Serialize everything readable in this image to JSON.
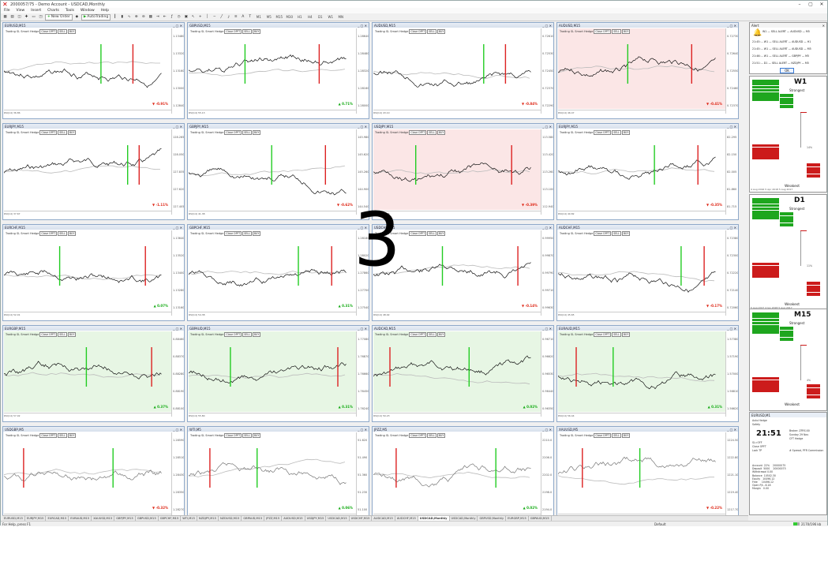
{
  "window": {
    "title": "2000057/75 - Demo Account - USDCAD,Monthly",
    "controls": [
      "–",
      "▢",
      "✕"
    ]
  },
  "menu": [
    "File",
    "View",
    "Insert",
    "Charts",
    "Tools",
    "Window",
    "Help"
  ],
  "toolbar": {
    "new_order": "New Order",
    "autotrading": "AutoTrading",
    "timeframes": [
      "M1",
      "M5",
      "M15",
      "M30",
      "H1",
      "H4",
      "D1",
      "W1",
      "MN"
    ]
  },
  "overlay_number": "3",
  "chart_windows": [
    {
      "title": "EURUSD,M15",
      "tone": "white",
      "change": "▼ -0.91%",
      "dir": "dn",
      "axis": [
        "1.13480",
        "1.13320",
        "1.13160",
        "1.13000",
        "1.12840"
      ],
      "indicator": "RSI(14) 36.86"
    },
    {
      "title": "GBPUSD,M15",
      "tone": "white",
      "change": "▲ 0.71%",
      "dir": "up",
      "axis": [
        "1.28640",
        "1.28480",
        "1.28320",
        "1.28160",
        "1.28000"
      ],
      "indicator": "RSI(14) 55.13"
    },
    {
      "title": "AUDUSD,M15",
      "tone": "white",
      "change": "▼ -0.84%",
      "dir": "dn",
      "axis": [
        "0.72610",
        "0.72530",
        "0.72450",
        "0.72370",
        "0.72290"
      ],
      "indicator": "RSI(14) 43.10"
    },
    {
      "title": "AUDUSD,M15",
      "tone": "pink",
      "change": "▼ -0.41%",
      "dir": "dn",
      "axis": [
        "0.72730",
        "0.72640",
        "0.72550",
        "0.72460",
        "0.72370"
      ],
      "indicator": "RSI(14) 46.47"
    },
    {
      "title": "EURJPY,M15",
      "tone": "white",
      "change": "▼ -1.11%",
      "dir": "dn",
      "axis": [
        "128.265",
        "128.050",
        "127.835",
        "127.620",
        "127.405"
      ],
      "indicator": "RSI(14) 37.67"
    },
    {
      "title": "GBPJPY,M15",
      "tone": "white",
      "change": "▼ -0.62%",
      "dir": "dn",
      "axis": [
        "145.980",
        "145.620",
        "145.260",
        "144.900",
        "144.540"
      ],
      "indicator": "RSI(14) 41.38"
    },
    {
      "title": "USDJPY,M15",
      "tone": "pink",
      "change": "▼ -0.39%",
      "dir": "dn",
      "axis": [
        "113.580",
        "113.420",
        "113.260",
        "113.100",
        "112.940"
      ],
      "indicator": "RSI(14) 38.26"
    },
    {
      "title": "EURJPY,M15",
      "tone": "white",
      "change": "▼ -0.35%",
      "dir": "dn",
      "axis": [
        "82.295",
        "82.150",
        "82.005",
        "81.860",
        "81.715"
      ],
      "indicator": "RSI(14) 40.82"
    },
    {
      "title": "EURCHF,M15",
      "tone": "white",
      "change": "▲ 0.07%",
      "dir": "up",
      "axis": [
        "1.13640",
        "1.13520",
        "1.13400",
        "1.13280",
        "1.13160"
      ],
      "indicator": "RSI(14) 52.01"
    },
    {
      "title": "GBPCHF,M15",
      "tone": "white",
      "change": "▲ 0.31%",
      "dir": "up",
      "axis": [
        "1.28180",
        "1.28020",
        "1.27860",
        "1.27700",
        "1.27540"
      ],
      "indicator": "RSI(14) 54.38"
    },
    {
      "title": "USDCHF,M15",
      "tone": "white",
      "change": "▼ -0.14%",
      "dir": "dn",
      "axis": [
        "0.99950",
        "0.99870",
        "0.99790",
        "0.99710",
        "0.99630"
      ],
      "indicator": "RSI(14) 48.92"
    },
    {
      "title": "AUDCHF,M15",
      "tone": "white",
      "change": "▼ -0.17%",
      "dir": "dn",
      "axis": [
        "0.72380",
        "0.72300",
        "0.72220",
        "0.72140",
        "0.72060"
      ],
      "indicator": "RSI(14) 45.65"
    },
    {
      "title": "EURGBP,M15",
      "tone": "green",
      "change": "▲ 0.37%",
      "dir": "up",
      "axis": [
        "0.88460",
        "0.88370",
        "0.88280",
        "0.88190",
        "0.88100"
      ],
      "indicator": "RSI(14) 57.02"
    },
    {
      "title": "GBPAUD,M15",
      "tone": "green",
      "change": "▲ 0.31%",
      "dir": "up",
      "axis": [
        "1.77080",
        "1.76870",
        "1.76660",
        "1.76450",
        "1.76240"
      ],
      "indicator": "RSI(14) 55.80"
    },
    {
      "title": "AUDCAD,M15",
      "tone": "green",
      "change": "▲ 0.02%",
      "dir": "up",
      "axis": [
        "0.96710",
        "0.96620",
        "0.96530",
        "0.96440",
        "0.96350"
      ],
      "indicator": "RSI(14) 50.23"
    },
    {
      "title": "EURAUD,M15",
      "tone": "green",
      "change": "▲ 0.31%",
      "dir": "up",
      "axis": [
        "1.57380",
        "1.57190",
        "1.57000",
        "1.56810",
        "1.56620"
      ],
      "indicator": "RSI(14) 56.44"
    },
    {
      "title": "USDGBP,M5",
      "tone": "white",
      "change": "▼ -0.32%",
      "dir": "dn",
      "axis": [
        "1.28590",
        "1.28510",
        "1.28430",
        "1.28350",
        "1.28270"
      ],
      "indicator": ""
    },
    {
      "title": "WTI,M5",
      "tone": "white",
      "change": "▲ 0.06%",
      "dir": "up",
      "axis": [
        "51.620",
        "51.490",
        "51.360",
        "51.230",
        "51.100"
      ],
      "indicator": ""
    },
    {
      "title": "JPZZ,M5",
      "tone": "white",
      "change": "▲ 0.02%",
      "dir": "up",
      "axis": [
        "2210.0",
        "2206.0",
        "2202.0",
        "2198.0",
        "2194.0"
      ],
      "indicator": ""
    },
    {
      "title": "XAUUSD,M5",
      "tone": "white",
      "change": "▼ -0.22%",
      "dir": "dn",
      "axis": [
        "1224.50",
        "1222.80",
        "1221.10",
        "1219.40",
        "1217.70"
      ],
      "indicator": ""
    }
  ],
  "chart_overlay": {
    "trading_label": "Trading SL",
    "hedge_label": "Smart Hedge",
    "close_btn": "Close OPFT",
    "buy": "BUY",
    "sell": "SELL",
    "trade_max_btn": "Trade Max OPFT"
  },
  "tabs": [
    "EURUSD,M15",
    "EURJPY,M15",
    "EURCAD,M15",
    "EURAUD,M15",
    "XAUUSD,M15",
    "GBPJPY,M15",
    "GBPUSD,M15",
    "GBPCHF,M15",
    "WTI,M15",
    "NZDJPY,M15",
    "NZDUSD,M15",
    "GBPAUD,M15",
    "JPZZ,M15",
    "AUDUSD,M15",
    "USDJPY,M15",
    "USDCAD,M15",
    "USDCHF,M15",
    "AUDCAD,M15",
    "AUDCHF,M15",
    "USDCAD,Monthly",
    "USDCAD,Monthly",
    "GBPUSD,Monthly",
    "EURGBP,M15",
    "GBPAUD,M15"
  ],
  "active_tab": 19,
  "status": {
    "help": "For Help, press F1",
    "profile": "Default",
    "traffic": "2170/196 kb"
  },
  "alert": {
    "title": "Alert",
    "rows": [
      "21:45:... W1  — SELL ALERT — AUDUSD — H1",
      "21:45:... W1  — SELL ALERT — AUDUSD — M5",
      "21:46:... W1  — SELL ALERT — GBPJPY — M5",
      "21:51:... D1  — SELL ALERT — NZDJPY — M5",
      "21:51:... D1  — BUY ALERT — AUDUSD — M5"
    ],
    "head": "W1 — SELL ALERT — AUDUSD — M5",
    "ok": "OK"
  },
  "strength_panels": [
    {
      "tf": "W1",
      "strongest": "Strongest",
      "weakest": "Weakest",
      "mid": "14%",
      "dates": "4 Aug 2016   5 Apr 2018   5 Aug 2017"
    },
    {
      "tf": "D1",
      "strongest": "Strongest",
      "weakest": "Weakest",
      "mid": "11%",
      "dates": "5 Aug 2017   4 Jan 2018   5 Aug 2017"
    },
    {
      "tf": "M15",
      "strongest": "Strongest",
      "weakest": "Weakest",
      "mid": "4%",
      "dates": ""
    }
  ],
  "account": {
    "title": "EURUSD,M1",
    "clock": "21:51",
    "lines": [
      "Auto Hedge",
      "Safety",
      "N/A",
      "SL=OFF",
      "Close OPFT",
      "Lock TP"
    ],
    "rlines": [
      "Broker: ZFRS:00",
      "Sunday 29 Nov",
      "CFT Hedge",
      "P/S",
      "# Spread, PFR Commission"
    ],
    "summary": "Account  22%    20000075\nDeposit  5000    20000075\nWithdrawal 0.00\nBalance  10502.30\nEquity   10496.12\nFree     10496.12\nOpen P/L -6.18\nMargin   0.00"
  },
  "colors": {
    "pink": "#fbe6e6",
    "green": "#e7f6e4",
    "up_bar": "#22cc22",
    "dn_bar": "#dd2222",
    "strong": "#1ea61e",
    "weak": "#cc1b1b"
  }
}
